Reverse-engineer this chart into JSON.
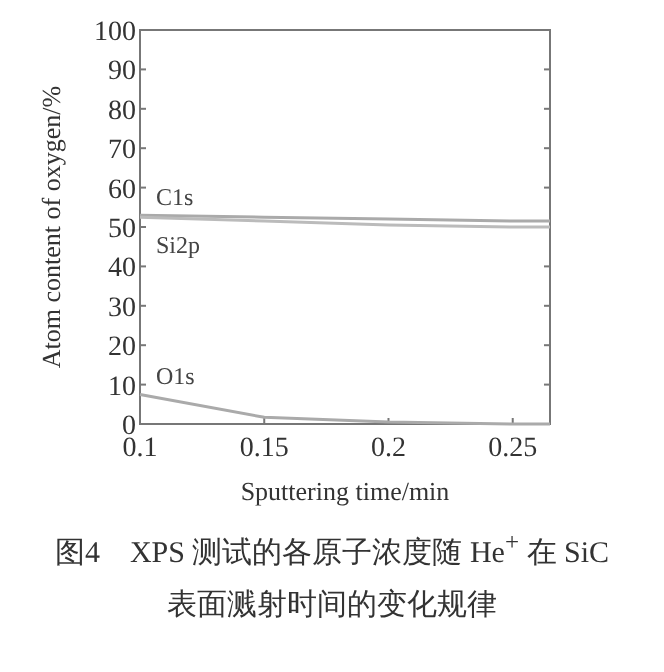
{
  "chart_data": {
    "type": "line",
    "title": "图4　XPS 测试的各原子浓度随 He$^{+}$ 在 SiC 表面溅射时间的变化规律",
    "xlabel": "Sputtering time/min",
    "ylabel": "Atom content of oxygen/%",
    "x": [
      0.1,
      0.15,
      0.2,
      0.25,
      0.265
    ],
    "xlim": [
      0.1,
      0.265
    ],
    "xticks": [
      0.1,
      0.15,
      0.2,
      0.25
    ],
    "ylim": [
      0,
      100
    ],
    "yticks": [
      0,
      10,
      20,
      30,
      40,
      50,
      60,
      70,
      80,
      90,
      100
    ],
    "grid": false,
    "legend": false,
    "marker": "none",
    "line_style": "solid",
    "series": [
      {
        "name": "C1s",
        "color": "#aaaaaa",
        "values": [
          53,
          52.5,
          52,
          51.5,
          51.5
        ]
      },
      {
        "name": "Si2p",
        "color": "#bbbbbb",
        "values": [
          52.5,
          51.5,
          50.5,
          50,
          50
        ]
      },
      {
        "name": "O1s",
        "color": "#aaaaaa",
        "values": [
          7.5,
          1.7,
          0.5,
          0,
          0
        ]
      }
    ]
  }
}
